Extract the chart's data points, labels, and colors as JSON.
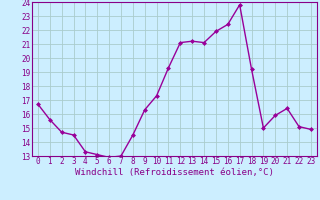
{
  "x": [
    0,
    1,
    2,
    3,
    4,
    5,
    6,
    7,
    8,
    9,
    10,
    11,
    12,
    13,
    14,
    15,
    16,
    17,
    18,
    19,
    20,
    21,
    22,
    23
  ],
  "y": [
    16.7,
    15.6,
    14.7,
    14.5,
    13.3,
    13.1,
    12.9,
    13.0,
    14.5,
    16.3,
    17.3,
    19.3,
    21.1,
    21.2,
    21.1,
    21.9,
    22.4,
    23.8,
    19.2,
    15.0,
    15.9,
    16.4,
    15.1,
    14.9
  ],
  "line_color": "#990099",
  "marker": "D",
  "marker_size": 2.0,
  "linewidth": 1.0,
  "xlabel": "Windchill (Refroidissement éolien,°C)",
  "xlabel_fontsize": 6.5,
  "ylim": [
    13,
    24
  ],
  "xlim": [
    -0.5,
    23.5
  ],
  "yticks": [
    13,
    14,
    15,
    16,
    17,
    18,
    19,
    20,
    21,
    22,
    23,
    24
  ],
  "xticks": [
    0,
    1,
    2,
    3,
    4,
    5,
    6,
    7,
    8,
    9,
    10,
    11,
    12,
    13,
    14,
    15,
    16,
    17,
    18,
    19,
    20,
    21,
    22,
    23
  ],
  "xtick_labels": [
    "0",
    "1",
    "2",
    "3",
    "4",
    "5",
    "6",
    "7",
    "8",
    "9",
    "10",
    "11",
    "12",
    "13",
    "14",
    "15",
    "16",
    "17",
    "18",
    "19",
    "20",
    "21",
    "22",
    "23"
  ],
  "background_color": "#cceeff",
  "grid_color": "#aacccc",
  "tick_fontsize": 5.5,
  "tick_color": "#880088",
  "label_color": "#880088",
  "spine_color": "#880088"
}
